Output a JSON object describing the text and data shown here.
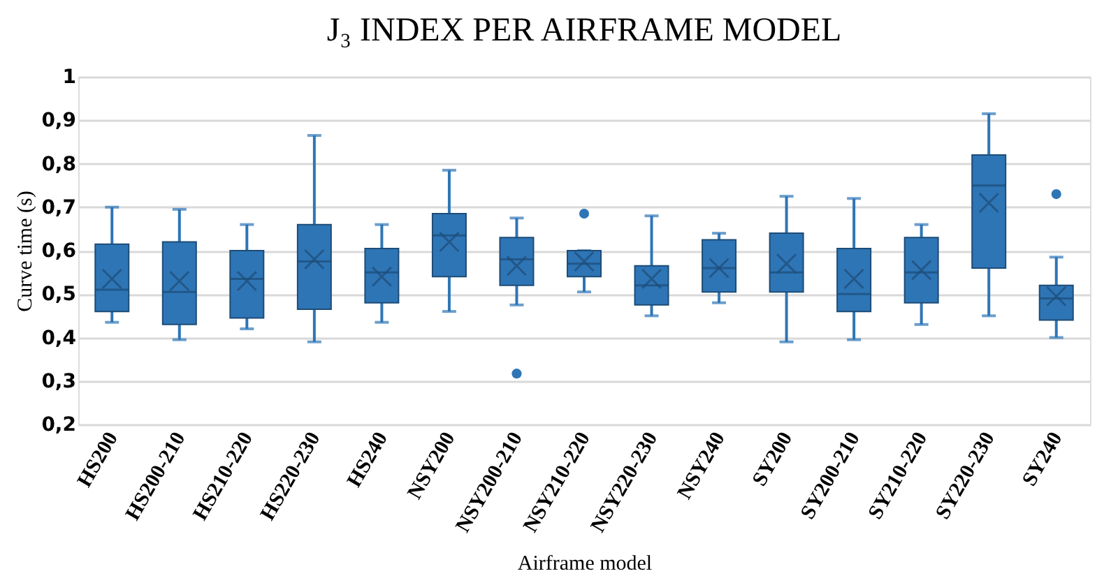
{
  "chart_data": {
    "type": "box",
    "title": "J₃ INDEX PER AIRFRAME MODEL",
    "xlabel": "Airframe model",
    "ylabel": "Curve time (s)",
    "categories": [
      "HS200",
      "HS200-210",
      "HS210-220",
      "HS220-230",
      "HS240",
      "NSY200",
      "NSY200-210",
      "NSY210-220",
      "NSY220-230",
      "NSY240",
      "SY200",
      "SY200-210",
      "SY210-220",
      "SY220-230",
      "SY240"
    ],
    "series": [
      {
        "color": "#2e75b6",
        "boxes": [
          {
            "low": 0.435,
            "q1": 0.46,
            "median": 0.51,
            "q3": 0.615,
            "high": 0.7,
            "mean": 0.535
          },
          {
            "low": 0.395,
            "q1": 0.43,
            "median": 0.505,
            "q3": 0.62,
            "high": 0.695,
            "mean": 0.53
          },
          {
            "low": 0.42,
            "q1": 0.445,
            "median": 0.535,
            "q3": 0.6,
            "high": 0.66,
            "mean": 0.53
          },
          {
            "low": 0.39,
            "q1": 0.465,
            "median": 0.575,
            "q3": 0.66,
            "high": 0.865,
            "mean": 0.58
          },
          {
            "low": 0.435,
            "q1": 0.48,
            "median": 0.55,
            "q3": 0.605,
            "high": 0.66,
            "mean": 0.54
          },
          {
            "low": 0.46,
            "q1": 0.54,
            "median": 0.635,
            "q3": 0.685,
            "high": 0.785,
            "mean": 0.62
          },
          {
            "low": 0.475,
            "q1": 0.52,
            "median": 0.58,
            "q3": 0.63,
            "high": 0.675,
            "mean": 0.565,
            "outliers": [
              0.317
            ]
          },
          {
            "low": 0.505,
            "q1": 0.54,
            "median": 0.57,
            "q3": 0.6,
            "high": 0.6,
            "mean": 0.575,
            "outliers": [
              0.685
            ]
          },
          {
            "low": 0.45,
            "q1": 0.475,
            "median": 0.52,
            "q3": 0.565,
            "high": 0.68,
            "mean": 0.535
          },
          {
            "low": 0.48,
            "q1": 0.505,
            "median": 0.56,
            "q3": 0.625,
            "high": 0.64,
            "mean": 0.56
          },
          {
            "low": 0.39,
            "q1": 0.505,
            "median": 0.55,
            "q3": 0.64,
            "high": 0.725,
            "mean": 0.57
          },
          {
            "low": 0.395,
            "q1": 0.46,
            "median": 0.5,
            "q3": 0.605,
            "high": 0.72,
            "mean": 0.535
          },
          {
            "low": 0.43,
            "q1": 0.48,
            "median": 0.55,
            "q3": 0.63,
            "high": 0.66,
            "mean": 0.555
          },
          {
            "low": 0.45,
            "q1": 0.56,
            "median": 0.75,
            "q3": 0.82,
            "high": 0.915,
            "mean": 0.71
          },
          {
            "low": 0.4,
            "q1": 0.44,
            "median": 0.49,
            "q3": 0.52,
            "high": 0.585,
            "mean": 0.495,
            "outliers": [
              0.73
            ]
          }
        ]
      }
    ],
    "ylim": [
      0.2,
      1
    ],
    "yticks": [
      {
        "value": 0.2,
        "label": "0,2"
      },
      {
        "value": 0.3,
        "label": "0,3"
      },
      {
        "value": 0.4,
        "label": "0,4"
      },
      {
        "value": 0.5,
        "label": "0,5"
      },
      {
        "value": 0.6,
        "label": "0,6"
      },
      {
        "value": 0.7,
        "label": "0,7"
      },
      {
        "value": 0.8,
        "label": "0,8"
      },
      {
        "value": 0.9,
        "label": "0,9"
      },
      {
        "value": 1,
        "label": "1"
      }
    ],
    "grid": "y"
  }
}
